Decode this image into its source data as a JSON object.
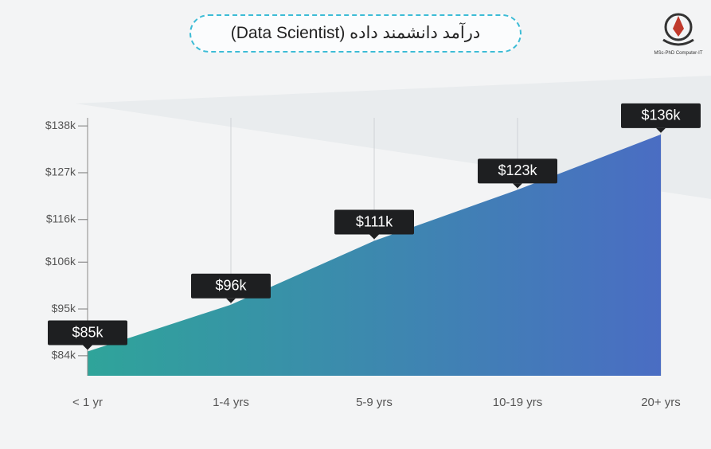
{
  "logo": "MSc-PhD Computer-IT",
  "chart_data": {
    "type": "area",
    "title": "درآمد دانشمند داده (Data Scientist)",
    "categories": [
      "< 1 yr",
      "1-4 yrs",
      "5-9 yrs",
      "10-19 yrs",
      "20+ yrs"
    ],
    "values": [
      85,
      96,
      111,
      123,
      136
    ],
    "value_labels": [
      "$85k",
      "$96k",
      "$111k",
      "$123k",
      "$136k"
    ],
    "gradient": [
      "#2fa49a",
      "#4a6dc3"
    ],
    "ylim": [
      79.3,
      139.9
    ],
    "yticks": [
      {
        "value": 84,
        "label": "$84k"
      },
      {
        "value": 95,
        "label": "$95k"
      },
      {
        "value": 106,
        "label": "$106k"
      },
      {
        "value": 116,
        "label": "$116k"
      },
      {
        "value": 127,
        "label": "$127k"
      },
      {
        "value": 138,
        "label": "$138k"
      }
    ],
    "grid": true
  }
}
